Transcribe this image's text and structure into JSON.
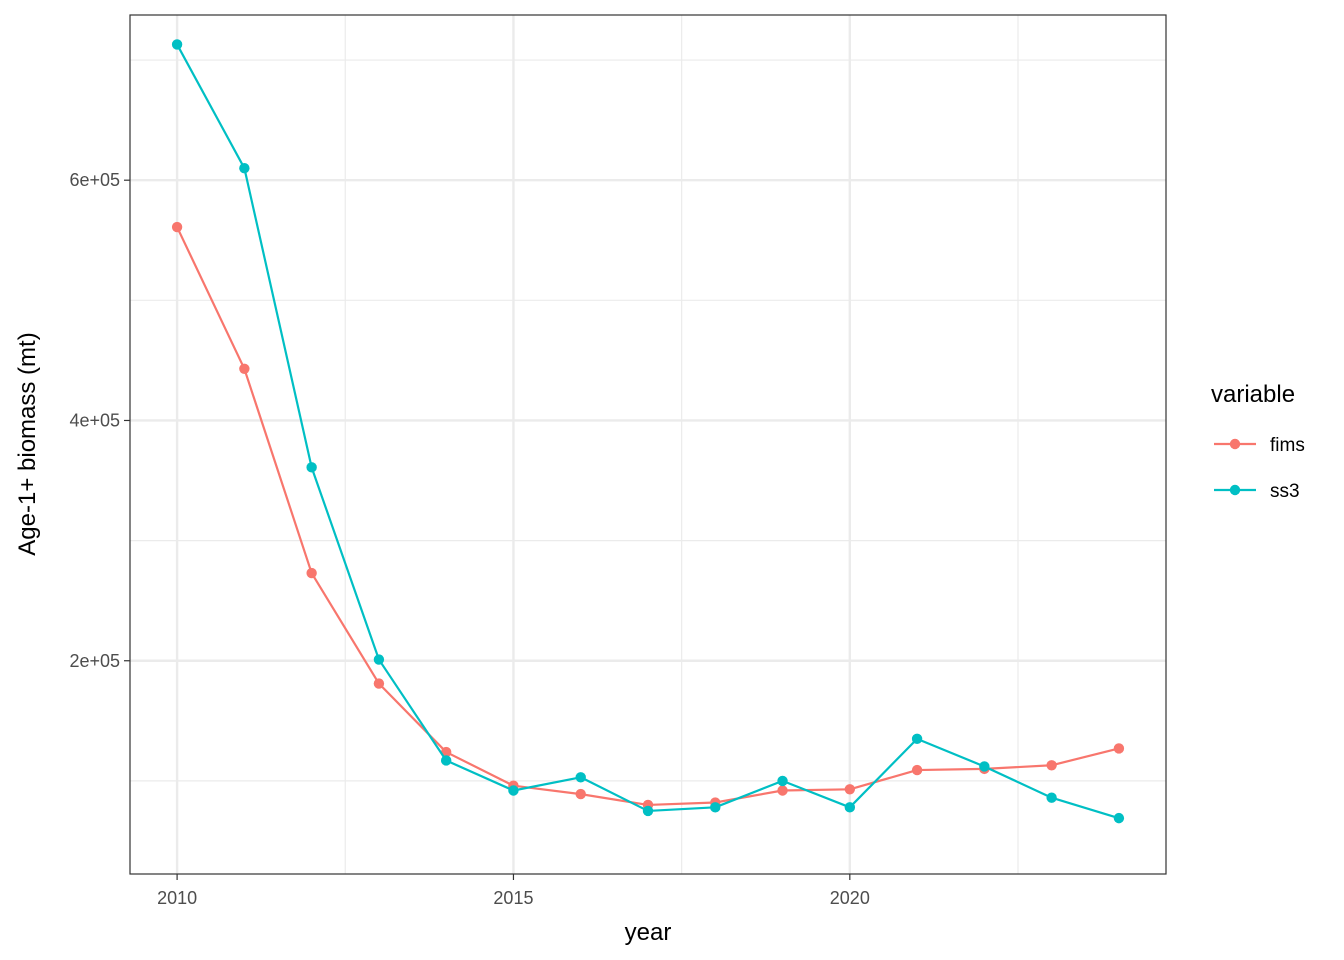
{
  "chart_data": {
    "type": "line",
    "title": "",
    "xlabel": "year",
    "ylabel": "Age-1+ biomass (mt)",
    "xlim": [
      2009.3,
      2024.7
    ],
    "ylim": [
      22500,
      737500
    ],
    "x_ticks": [
      2010,
      2015,
      2020
    ],
    "x_tick_labels": [
      "2010",
      "2015",
      "2020"
    ],
    "x_minor_ticks": [
      2012.5,
      2017.5,
      2022.5
    ],
    "y_ticks": [
      200000,
      400000,
      600000
    ],
    "y_tick_labels": [
      "2e+05",
      "4e+05",
      "6e+05"
    ],
    "y_minor_ticks": [
      100000,
      300000,
      500000,
      700000
    ],
    "grid": true,
    "legend": {
      "title": "variable",
      "position": "right"
    },
    "x": [
      2010,
      2011,
      2012,
      2013,
      2014,
      2015,
      2016,
      2017,
      2018,
      2019,
      2020,
      2021,
      2022,
      2023,
      2024
    ],
    "series": [
      {
        "name": "fims",
        "color": "#F8766D",
        "values": [
          561000,
          443000,
          273000,
          181000,
          124000,
          96000,
          89000,
          80000,
          82000,
          92000,
          93000,
          109000,
          110000,
          113000,
          127000
        ]
      },
      {
        "name": "ss3",
        "color": "#00BFC4",
        "values": [
          713000,
          610000,
          361000,
          201000,
          117000,
          92000,
          103000,
          75000,
          78000,
          100000,
          78000,
          135000,
          112000,
          86000,
          69000
        ]
      }
    ]
  }
}
